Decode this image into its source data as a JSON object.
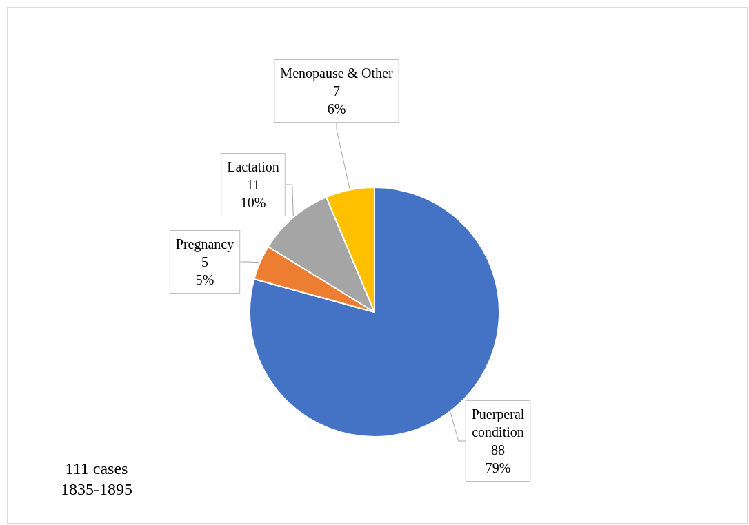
{
  "chart_data": {
    "type": "pie",
    "categories": [
      "Puerperal condition",
      "Pregnancy",
      "Lactation",
      "Menopause & Other"
    ],
    "values": [
      88,
      5,
      11,
      7
    ],
    "colors": [
      "#4472c4",
      "#ed7d31",
      "#a5a5a5",
      "#ffc000"
    ],
    "value_labels": [
      "88\n79%",
      "5\n5%",
      "11\n10%",
      "7\n6%"
    ],
    "annotations": [
      "111 cases",
      "1835-1895"
    ],
    "legend": false
  }
}
